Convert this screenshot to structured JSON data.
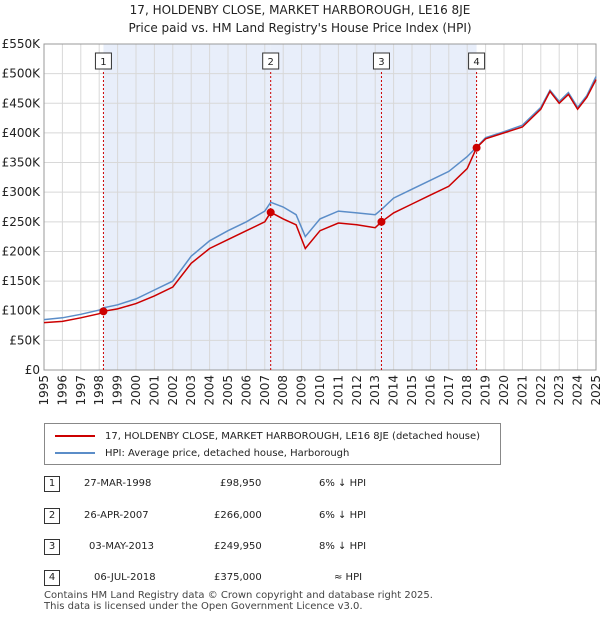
{
  "title_line1": "17, HOLDENBY CLOSE, MARKET HARBOROUGH, LE16 8JE",
  "title_line2": "Price paid vs. HM Land Registry's House Price Index (HPI)",
  "chart_data": {
    "type": "line",
    "ylim": [
      0,
      550000
    ],
    "xlim": [
      1995,
      2025
    ],
    "y_ticks": [
      0,
      50000,
      100000,
      150000,
      200000,
      250000,
      300000,
      350000,
      400000,
      450000,
      500000,
      550000
    ],
    "y_tick_labels": [
      "£0",
      "£50K",
      "£100K",
      "£150K",
      "£200K",
      "£250K",
      "£300K",
      "£350K",
      "£400K",
      "£450K",
      "£500K",
      "£550K"
    ],
    "x_ticks": [
      1995,
      1996,
      1997,
      1998,
      1999,
      2000,
      2001,
      2002,
      2003,
      2004,
      2005,
      2006,
      2007,
      2008,
      2009,
      2010,
      2011,
      2012,
      2013,
      2014,
      2015,
      2016,
      2017,
      2018,
      2019,
      2020,
      2021,
      2022,
      2023,
      2024,
      2025
    ],
    "series": [
      {
        "name": "17, HOLDENBY CLOSE, MARKET HARBOROUGH, LE16 8JE (detached house)",
        "color": "#cc0000",
        "x": [
          1995.0,
          1996.0,
          1997.0,
          1998.0,
          1998.23,
          1999.0,
          2000.0,
          2001.0,
          2002.0,
          2003.0,
          2004.0,
          2005.0,
          2006.0,
          2007.0,
          2007.32,
          2008.0,
          2008.7,
          2009.2,
          2010.0,
          2011.0,
          2012.0,
          2013.0,
          2013.34,
          2014.0,
          2015.0,
          2016.0,
          2017.0,
          2018.0,
          2018.51,
          2019.0,
          2020.0,
          2021.0,
          2022.0,
          2022.5,
          2023.0,
          2023.5,
          2024.0,
          2024.5,
          2025.0
        ],
        "y": [
          80000,
          82000,
          88000,
          95000,
          98950,
          103000,
          112000,
          125000,
          140000,
          180000,
          205000,
          220000,
          235000,
          250000,
          266000,
          255000,
          245000,
          205000,
          235000,
          248000,
          245000,
          240000,
          249950,
          265000,
          280000,
          295000,
          310000,
          340000,
          375000,
          390000,
          400000,
          410000,
          440000,
          470000,
          450000,
          465000,
          440000,
          460000,
          490000
        ]
      },
      {
        "name": "HPI: Average price, detached house, Harborough",
        "color": "#5b8dc8",
        "x": [
          1995.0,
          1996.0,
          1997.0,
          1998.0,
          1998.23,
          1999.0,
          2000.0,
          2001.0,
          2002.0,
          2003.0,
          2004.0,
          2005.0,
          2006.0,
          2007.0,
          2007.32,
          2008.0,
          2008.7,
          2009.2,
          2010.0,
          2011.0,
          2012.0,
          2013.0,
          2013.34,
          2014.0,
          2015.0,
          2016.0,
          2017.0,
          2018.0,
          2018.51,
          2019.0,
          2020.0,
          2021.0,
          2022.0,
          2022.5,
          2023.0,
          2023.5,
          2024.0,
          2024.5,
          2025.0
        ],
        "y": [
          85000,
          88000,
          94000,
          101000,
          105000,
          110000,
          120000,
          135000,
          150000,
          192000,
          218000,
          235000,
          250000,
          268000,
          283000,
          275000,
          262000,
          225000,
          255000,
          268000,
          265000,
          262000,
          271000,
          290000,
          305000,
          320000,
          335000,
          360000,
          376000,
          392000,
          402000,
          413000,
          443000,
          472000,
          453000,
          468000,
          443000,
          463000,
          495000
        ]
      }
    ],
    "sales": [
      {
        "label": "1",
        "x": 1998.23,
        "y": 98950
      },
      {
        "label": "2",
        "x": 2007.32,
        "y": 266000
      },
      {
        "label": "3",
        "x": 2013.34,
        "y": 249950
      },
      {
        "label": "4",
        "x": 2018.51,
        "y": 375000
      }
    ]
  },
  "legend": {
    "red_label": "17, HOLDENBY CLOSE, MARKET HARBOROUGH, LE16 8JE (detached house)",
    "blue_label": "HPI: Average price, detached house, Harborough"
  },
  "transactions": [
    {
      "num": "1",
      "date": "27-MAR-1998",
      "price": "£98,950",
      "hpi": "6% ↓ HPI"
    },
    {
      "num": "2",
      "date": "26-APR-2007",
      "price": "£266,000",
      "hpi": "6% ↓ HPI"
    },
    {
      "num": "3",
      "date": "03-MAY-2013",
      "price": "£249,950",
      "hpi": "8% ↓ HPI"
    },
    {
      "num": "4",
      "date": "06-JUL-2018",
      "price": "£375,000",
      "hpi": "≈ HPI"
    }
  ],
  "footer_line1": "Contains HM Land Registry data © Crown copyright and database right 2025.",
  "footer_line2": "This data is licensed under the Open Government Licence v3.0."
}
